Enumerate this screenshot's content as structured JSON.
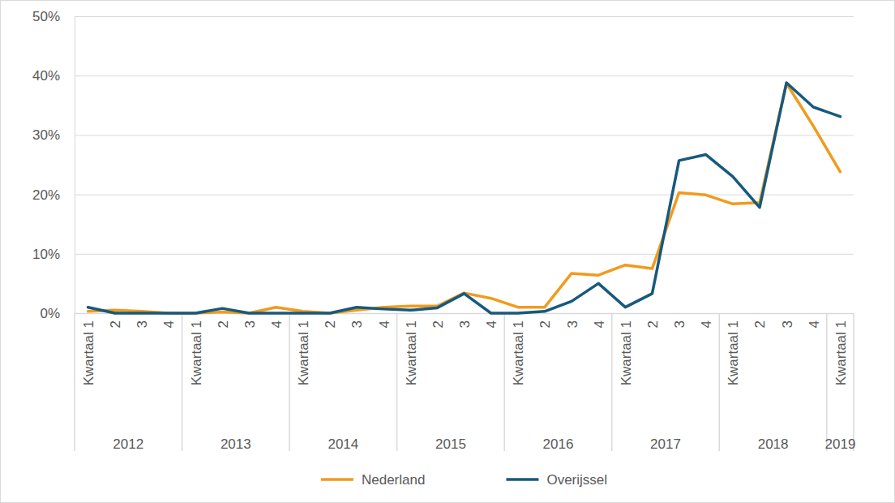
{
  "chart_data": {
    "type": "line",
    "categories": [
      "Kwartaal 1",
      "2",
      "3",
      "4",
      "Kwartaal 1",
      "2",
      "3",
      "4",
      "Kwartaal 1",
      "2",
      "3",
      "4",
      "Kwartaal 1",
      "2",
      "3",
      "4",
      "Kwartaal 1",
      "2",
      "3",
      "4",
      "Kwartaal 1",
      "2",
      "3",
      "4",
      "Kwartaal 1",
      "2",
      "3",
      "4",
      "Kwartaal 1"
    ],
    "x_groups": [
      "2012",
      "2013",
      "2014",
      "2015",
      "2016",
      "2017",
      "2018",
      "2019"
    ],
    "series": [
      {
        "name": "Nederland",
        "color": "#f09b1e",
        "values": [
          0.3,
          0.5,
          0.3,
          0,
          0,
          0.2,
          0,
          1,
          0.3,
          0,
          0.5,
          1,
          1.2,
          1.2,
          3.4,
          2.5,
          1,
          1,
          6.7,
          6.4,
          8.1,
          7.5,
          20.3,
          19.9,
          18.4,
          18.6,
          38.7,
          31.5,
          23.8
        ]
      },
      {
        "name": "Overijssel",
        "color": "#17597e",
        "values": [
          1,
          0,
          0,
          0,
          0,
          0.8,
          0,
          0,
          0,
          0,
          1,
          0.7,
          0.5,
          0.9,
          3.3,
          0,
          0,
          0.3,
          2,
          5,
          1,
          3.3,
          25.7,
          26.7,
          23,
          17.8,
          38.8,
          34.7,
          33.1
        ]
      }
    ],
    "ylim": [
      0,
      50
    ],
    "yticks": [
      {
        "value": 0,
        "label": "0%"
      },
      {
        "value": 10,
        "label": "10%"
      },
      {
        "value": 20,
        "label": "20%"
      },
      {
        "value": 30,
        "label": "30%"
      },
      {
        "value": 40,
        "label": "40%"
      },
      {
        "value": 50,
        "label": "50%"
      }
    ],
    "grid": true,
    "legend": "bottom"
  }
}
